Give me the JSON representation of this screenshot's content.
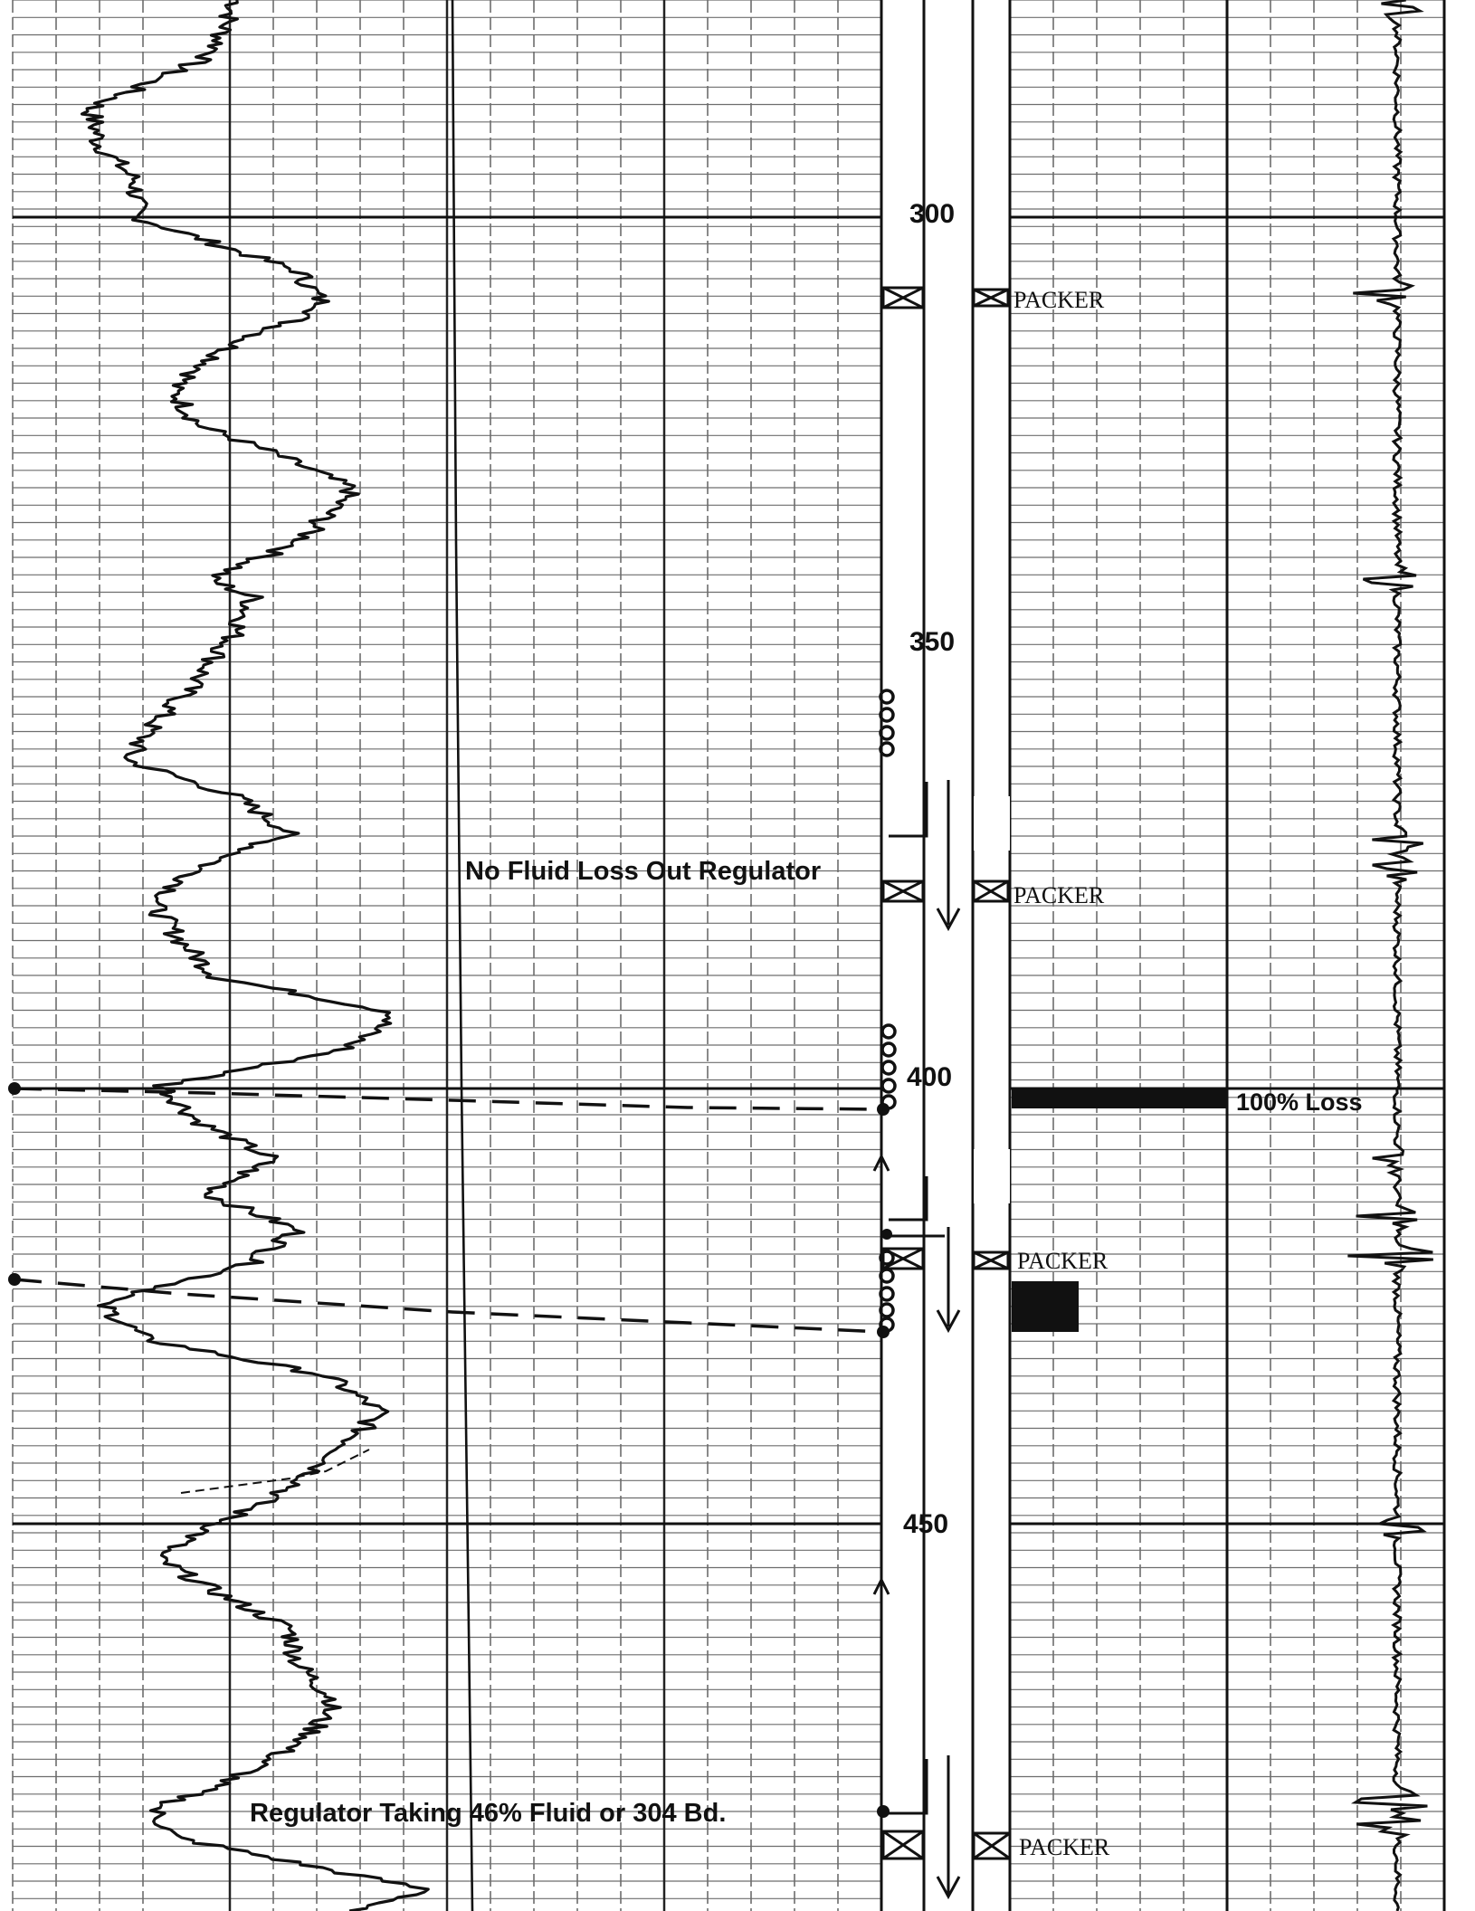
{
  "depth_labels": [
    "300",
    "350",
    "400",
    "450"
  ],
  "packer_label": "PACKER",
  "annotations": {
    "no_fluid_loss": "No Fluid Loss Out Regulator",
    "full_loss": "100% Loss",
    "regulator_taking": "Regulator Taking 46% Fluid or 304 Bd."
  },
  "colors": {
    "ink": "#111111",
    "paper": "#ffffff",
    "grid": "#6d6d6d"
  }
}
